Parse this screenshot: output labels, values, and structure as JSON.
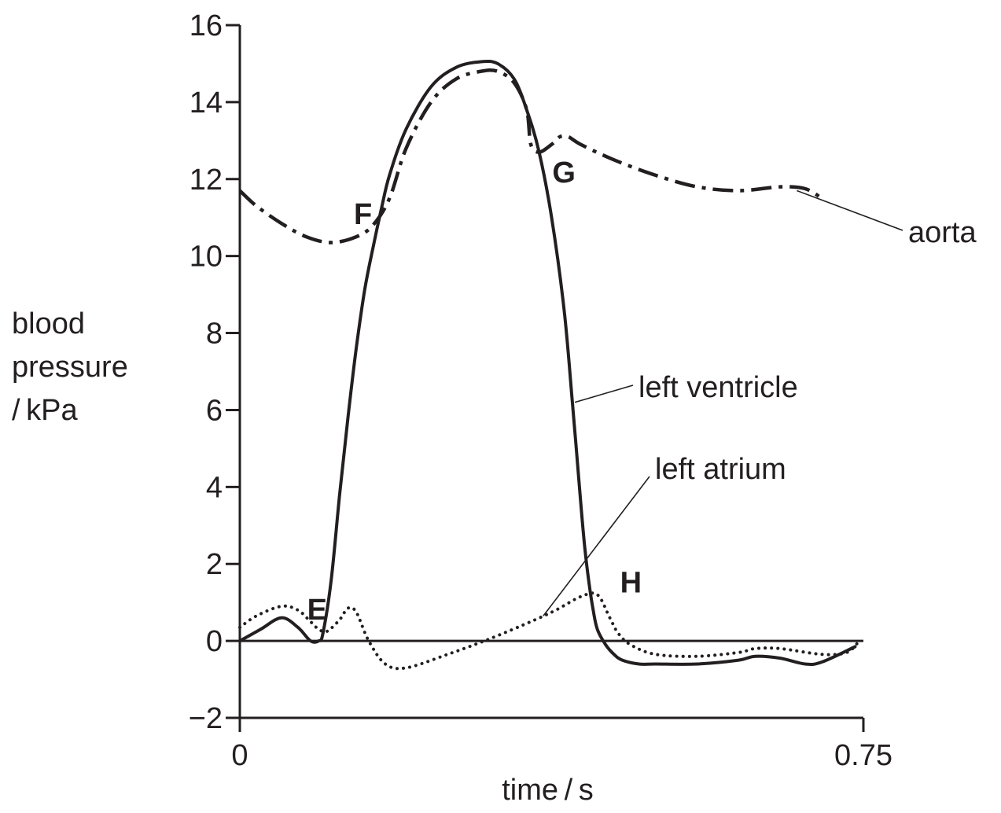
{
  "chart_data": {
    "type": "line",
    "xlabel": "time / s",
    "ylabel_lines": [
      "blood",
      "pressure",
      "/ kPa"
    ],
    "xlim": [
      0,
      0.75
    ],
    "ylim": [
      -2,
      16
    ],
    "x_ticks": [
      {
        "value": 0,
        "label": "0"
      },
      {
        "value": 0.75,
        "label": "0.75"
      }
    ],
    "y_ticks": [
      {
        "value": -2,
        "label": "−2"
      },
      {
        "value": 0,
        "label": "0"
      },
      {
        "value": 2,
        "label": "2"
      },
      {
        "value": 4,
        "label": "4"
      },
      {
        "value": 6,
        "label": "6"
      },
      {
        "value": 8,
        "label": "8"
      },
      {
        "value": 10,
        "label": "10"
      },
      {
        "value": 12,
        "label": "12"
      },
      {
        "value": 14,
        "label": "14"
      },
      {
        "value": 16,
        "label": "16"
      }
    ],
    "zero_line": true,
    "series": [
      {
        "name": "aorta",
        "style": "dash-dot",
        "x": [
          0,
          0.02,
          0.05,
          0.08,
          0.11,
          0.14,
          0.16,
          0.18,
          0.2,
          0.23,
          0.26,
          0.29,
          0.31,
          0.33,
          0.345,
          0.35,
          0.36,
          0.375,
          0.385,
          0.395,
          0.41,
          0.45,
          0.5,
          0.55,
          0.6,
          0.65,
          0.68,
          0.7
        ],
        "y": [
          11.7,
          11.3,
          10.85,
          10.5,
          10.35,
          10.5,
          10.8,
          11.5,
          12.8,
          14.0,
          14.6,
          14.8,
          14.8,
          14.5,
          13.8,
          12.9,
          12.7,
          12.9,
          13.1,
          13.1,
          12.9,
          12.5,
          12.1,
          11.8,
          11.7,
          11.8,
          11.75,
          11.5
        ]
      },
      {
        "name": "left ventricle",
        "style": "solid",
        "x": [
          0,
          0.025,
          0.05,
          0.07,
          0.085,
          0.095,
          0.1,
          0.11,
          0.12,
          0.13,
          0.14,
          0.15,
          0.16,
          0.17,
          0.18,
          0.2,
          0.23,
          0.26,
          0.29,
          0.31,
          0.33,
          0.345,
          0.36,
          0.375,
          0.39,
          0.4,
          0.41,
          0.415,
          0.42,
          0.425,
          0.43,
          0.44,
          0.45,
          0.46,
          0.48,
          0.5,
          0.55,
          0.6,
          0.62,
          0.65,
          0.68,
          0.7,
          0.74
        ],
        "y": [
          0.0,
          0.3,
          0.6,
          0.35,
          0.0,
          0.0,
          0.2,
          1.6,
          3.8,
          5.8,
          7.6,
          9.1,
          10.2,
          11.2,
          12.1,
          13.3,
          14.4,
          14.9,
          15.05,
          15.0,
          14.6,
          13.8,
          12.7,
          11.0,
          8.6,
          6.2,
          3.6,
          2.4,
          1.5,
          0.8,
          0.3,
          -0.1,
          -0.35,
          -0.5,
          -0.6,
          -0.6,
          -0.6,
          -0.5,
          -0.4,
          -0.45,
          -0.6,
          -0.55,
          -0.15
        ]
      },
      {
        "name": "left atrium",
        "style": "dotted",
        "x": [
          0,
          0.02,
          0.05,
          0.07,
          0.085,
          0.095,
          0.105,
          0.12,
          0.13,
          0.14,
          0.155,
          0.175,
          0.2,
          0.25,
          0.3,
          0.35,
          0.38,
          0.41,
          0.43,
          0.445,
          0.455,
          0.47,
          0.5,
          0.55,
          0.6,
          0.62,
          0.65,
          0.7,
          0.73,
          0.745
        ],
        "y": [
          0.35,
          0.65,
          0.9,
          0.8,
          0.5,
          0.3,
          0.25,
          0.55,
          0.85,
          0.75,
          0.0,
          -0.6,
          -0.7,
          -0.35,
          0.05,
          0.5,
          0.8,
          1.15,
          1.2,
          0.6,
          0.2,
          -0.1,
          -0.35,
          -0.4,
          -0.3,
          -0.2,
          -0.2,
          -0.35,
          -0.3,
          0.0
        ]
      }
    ],
    "series_labels": [
      {
        "series": "aorta",
        "text": "aorta",
        "leader_from": [
          0.67,
          11.7
        ]
      },
      {
        "series": "left ventricle",
        "text": "left ventricle",
        "leader_from": [
          0.403,
          6.2
        ]
      },
      {
        "series": "left atrium",
        "text": "left atrium",
        "leader_from": [
          0.365,
          0.65
        ]
      }
    ],
    "point_labels": [
      {
        "text": "E",
        "at": [
          0.093,
          0.0
        ]
      },
      {
        "text": "F",
        "at": [
          0.167,
          10.75
        ]
      },
      {
        "text": "G",
        "at": [
          0.37,
          12.75
        ]
      },
      {
        "text": "H",
        "at": [
          0.425,
          1.2
        ]
      }
    ]
  }
}
